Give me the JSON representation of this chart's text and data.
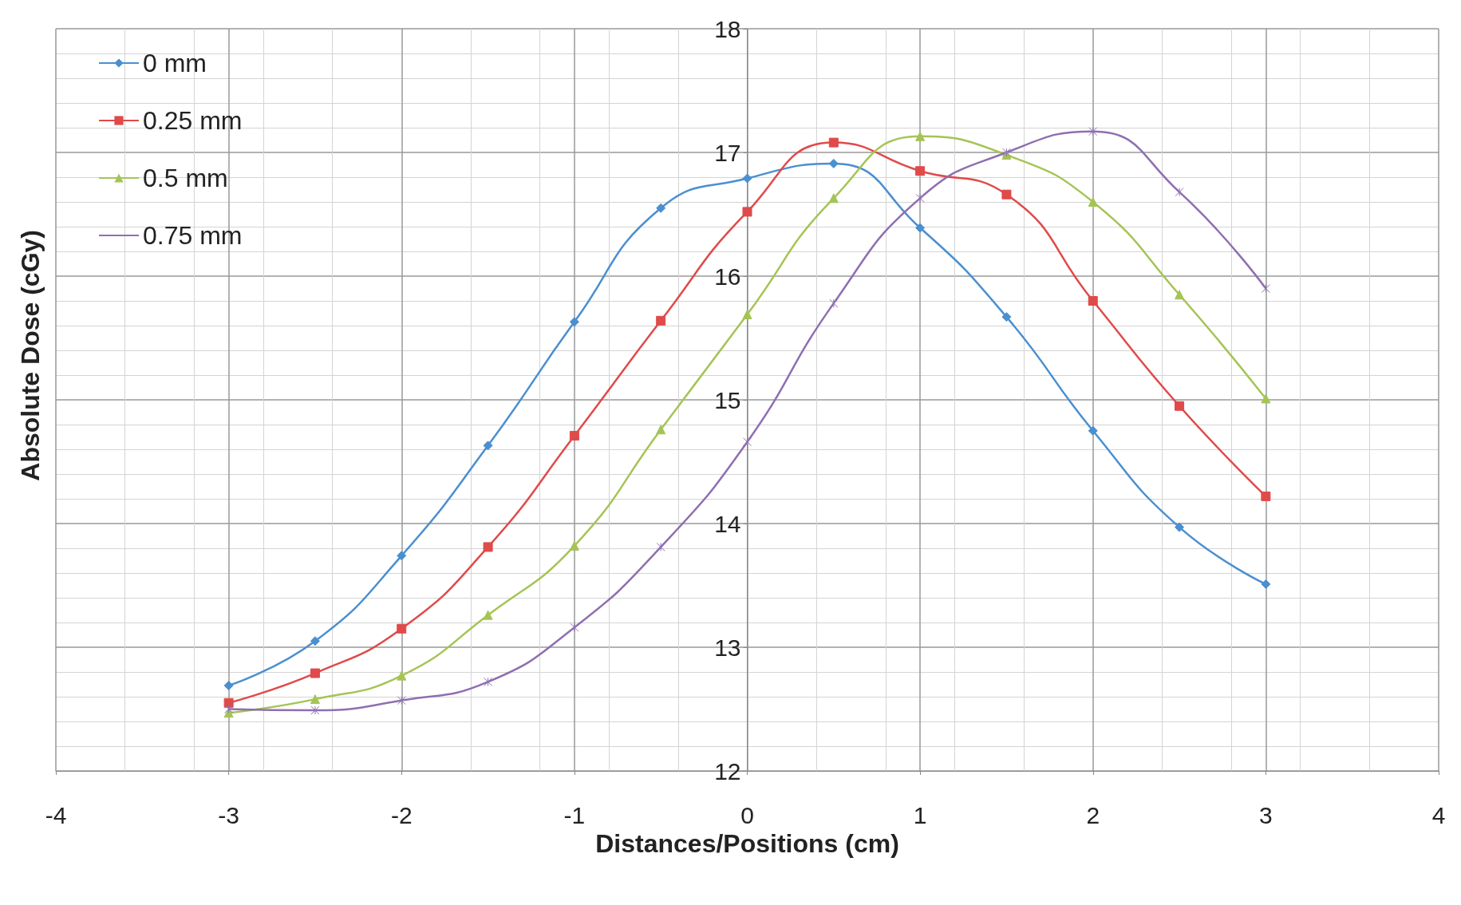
{
  "chart_data": {
    "type": "line",
    "xlabel": "Distances/Positions (cm)",
    "ylabel": "Absolute Dose (cGy)",
    "x": [
      -3,
      -2.5,
      -2,
      -1.5,
      -1,
      -0.5,
      0,
      0.5,
      1,
      1.5,
      2,
      2.5,
      3
    ],
    "xlim": [
      -4,
      4
    ],
    "xticks": [
      -4,
      -3,
      -2,
      -1,
      0,
      1,
      2,
      3,
      4
    ],
    "ylim": [
      12,
      18
    ],
    "yticks": [
      12,
      13,
      14,
      15,
      16,
      {
        "value": 17,
        "label": "17"
      },
      18
    ],
    "grid": true,
    "legend": "top left",
    "line_style": "solid",
    "series": [
      {
        "name": "0 mm",
        "color": "#4a8fd0",
        "marker": "diamond",
        "values": [
          12.69,
          13.05,
          13.74,
          14.63,
          15.63,
          16.55,
          16.79,
          16.91,
          16.39,
          15.67,
          14.75,
          13.97,
          13.51
        ]
      },
      {
        "name": "0.25 mm",
        "color": "#e04a4a",
        "marker": "square",
        "values": [
          12.55,
          12.79,
          13.15,
          13.81,
          14.71,
          15.64,
          16.52,
          17.08,
          16.85,
          16.66,
          15.8,
          14.95,
          14.22
        ]
      },
      {
        "name": "0.5 mm",
        "color": "#a5c455",
        "marker": "triangle",
        "values": [
          12.47,
          12.58,
          12.77,
          13.26,
          13.82,
          14.76,
          15.69,
          16.63,
          17.13,
          16.98,
          16.6,
          15.85,
          15.01
        ]
      },
      {
        "name": "0.75 mm",
        "color": "#8e6fb0",
        "marker": "cross",
        "values": [
          12.5,
          12.49,
          12.57,
          12.72,
          13.16,
          13.81,
          14.66,
          15.78,
          16.63,
          17.0,
          17.17,
          16.68,
          15.9
        ]
      }
    ]
  }
}
